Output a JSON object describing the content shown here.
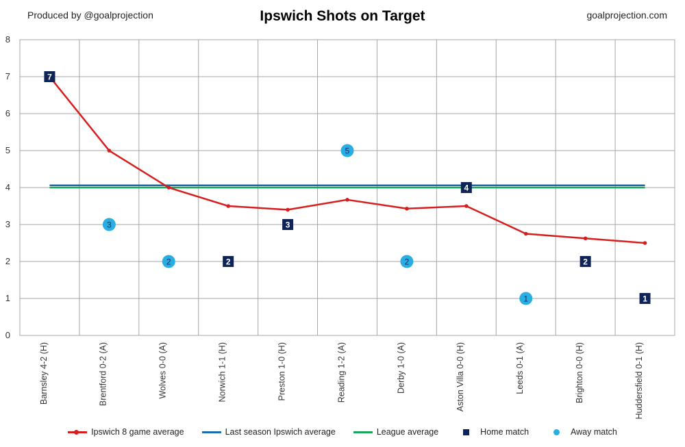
{
  "header": {
    "left": "Produced by @goalprojection",
    "title": "Ipswich Shots on Target",
    "right": "goalprojection.com"
  },
  "colors": {
    "average_line": "#d71e1e",
    "last_season": "#1b6ca8",
    "league_avg": "#1aa65a",
    "home": "#0e2357",
    "away": "#29aee3",
    "grid": "#a6a6a6"
  },
  "chart_data": {
    "type": "line",
    "title": "Ipswich Shots on Target",
    "ylim": [
      0,
      8
    ],
    "yticks": [
      "0",
      "1",
      "2",
      "3",
      "4",
      "5",
      "6",
      "7",
      "8"
    ],
    "categories": [
      "Barnsley 4-2 (H)",
      "Brentford 0-2 (A)",
      "Wolves 0-0 (A)",
      "Norwich 1-1 (H)",
      "Preston 1-0 (H)",
      "Reading 1-2 (A)",
      "Derby 1-0 (A)",
      "Aston Villa 0-0 (H)",
      "Leeds 0-1 (A)",
      "Brighton 0-0 (H)",
      "Huddersfield 0-1 (H)"
    ],
    "series": [
      {
        "name": "Ipswich 8 game average",
        "kind": "line",
        "values": [
          7,
          5,
          4,
          3.5,
          3.4,
          3.67,
          3.43,
          3.5,
          2.75,
          2.625,
          2.5
        ]
      },
      {
        "name": "Last season Ipswich average",
        "kind": "hline",
        "value": 4.06
      },
      {
        "name": "League average",
        "kind": "hline",
        "value": 4.0
      },
      {
        "name": "Home match",
        "kind": "marker",
        "values": [
          7,
          null,
          null,
          2,
          3,
          null,
          null,
          4,
          null,
          2,
          1
        ]
      },
      {
        "name": "Away match",
        "kind": "marker",
        "values": [
          null,
          3,
          2,
          null,
          null,
          5,
          2,
          null,
          1,
          null,
          null
        ]
      }
    ],
    "labels": {
      "home": [
        "7",
        "",
        "",
        "2",
        "3",
        "",
        "",
        "4",
        "",
        "2",
        "1"
      ],
      "away": [
        "",
        "3",
        "2",
        "",
        "",
        "5",
        "2",
        "",
        "1",
        "",
        ""
      ]
    },
    "legend": [
      "Ipswich 8 game average",
      "Last season Ipswich average",
      "League average",
      "Home match",
      "Away match"
    ]
  }
}
